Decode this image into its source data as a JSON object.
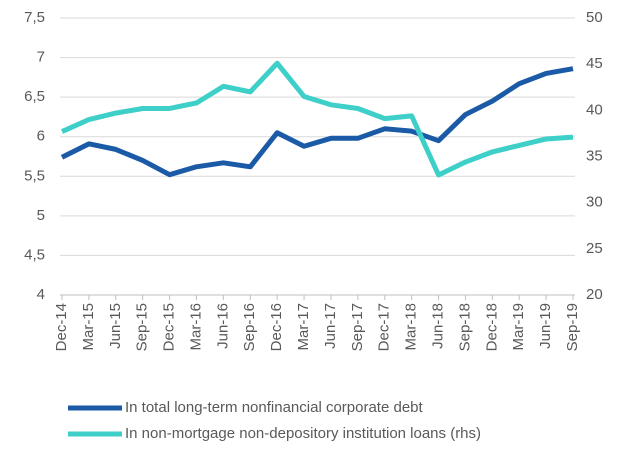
{
  "chart_data": {
    "type": "line",
    "categories": [
      "Dec-14",
      "Mar-15",
      "Jun-15",
      "Sep-15",
      "Dec-15",
      "Mar-16",
      "Jun-16",
      "Sep-16",
      "Dec-16",
      "Mar-17",
      "Jun-17",
      "Sep-17",
      "Dec-17",
      "Mar-18",
      "Jun-18",
      "Sep-18",
      "Dec-18",
      "Mar-19",
      "Jun-19",
      "Sep-19"
    ],
    "series": [
      {
        "name": "In total long-term nonfinancial corporate debt",
        "color": "#1b5aa6",
        "values": [
          5.74,
          5.91,
          5.84,
          5.7,
          5.52,
          5.62,
          5.67,
          5.62,
          6.05,
          5.88,
          5.98,
          5.98,
          6.1,
          6.07,
          5.95,
          6.28,
          6.45,
          6.67,
          6.8,
          6.86
        ]
      },
      {
        "name": "In non-mortgage non-depository institution loans (rhs)",
        "color": "#3ecfc8",
        "axis": "y2",
        "values": [
          37.7,
          39.0,
          39.7,
          40.2,
          40.2,
          40.8,
          42.6,
          42.0,
          45.1,
          41.5,
          40.6,
          40.2,
          39.1,
          39.4,
          33.0,
          34.4,
          35.5,
          36.2,
          36.9,
          37.1
        ]
      }
    ],
    "ylim": [
      4,
      7.5
    ],
    "yticks": [
      4,
      {
        "value": 4.5,
        "label": "4,5"
      },
      5,
      {
        "value": 5.5,
        "label": "5,5"
      },
      6,
      {
        "value": 6.5,
        "label": "6,5"
      },
      7,
      {
        "value": 7.5,
        "label": "7,5"
      }
    ],
    "y2lim": [
      20,
      50
    ],
    "y2ticks": [
      20,
      25,
      30,
      35,
      40,
      45,
      50
    ],
    "grid": true,
    "legend": "bottom"
  }
}
